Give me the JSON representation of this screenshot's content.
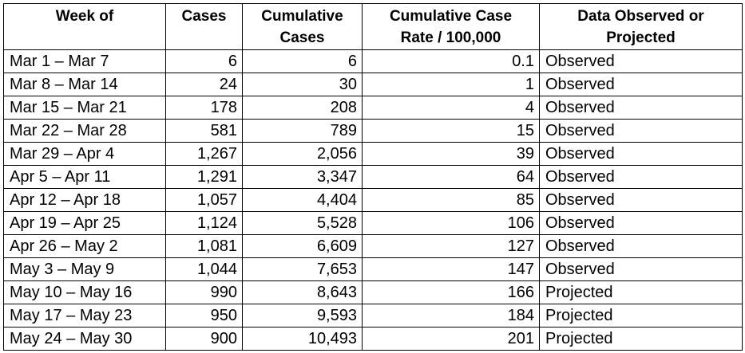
{
  "table": {
    "headers": {
      "week": [
        "Week of"
      ],
      "cases": [
        "Cases"
      ],
      "cumulative": [
        "Cumulative",
        "Cases"
      ],
      "rate": [
        "Cumulative Case",
        "Rate / 100,000"
      ],
      "status": [
        "Data Observed or",
        "Projected"
      ]
    },
    "rows": [
      {
        "week": "Mar 1 – Mar 7",
        "cases": "6",
        "cumulative": "6",
        "rate": "0.1",
        "status": "Observed"
      },
      {
        "week": "Mar 8 – Mar 14",
        "cases": "24",
        "cumulative": "30",
        "rate": "1",
        "status": "Observed"
      },
      {
        "week": "Mar 15 – Mar 21",
        "cases": "178",
        "cumulative": "208",
        "rate": "4",
        "status": "Observed"
      },
      {
        "week": "Mar 22 – Mar 28",
        "cases": "581",
        "cumulative": "789",
        "rate": "15",
        "status": "Observed"
      },
      {
        "week": "Mar 29 – Apr 4",
        "cases": "1,267",
        "cumulative": "2,056",
        "rate": "39",
        "status": "Observed"
      },
      {
        "week": "Apr 5 – Apr 11",
        "cases": "1,291",
        "cumulative": "3,347",
        "rate": "64",
        "status": "Observed"
      },
      {
        "week": "Apr 12 – Apr 18",
        "cases": "1,057",
        "cumulative": "4,404",
        "rate": "85",
        "status": "Observed"
      },
      {
        "week": "Apr 19 – Apr 25",
        "cases": "1,124",
        "cumulative": "5,528",
        "rate": "106",
        "status": "Observed"
      },
      {
        "week": "Apr 26 – May 2",
        "cases": "1,081",
        "cumulative": "6,609",
        "rate": "127",
        "status": "Observed"
      },
      {
        "week": "May 3 – May 9",
        "cases": "1,044",
        "cumulative": "7,653",
        "rate": "147",
        "status": "Observed"
      },
      {
        "week": "May 10 – May 16",
        "cases": "990",
        "cumulative": "8,643",
        "rate": "166",
        "status": "Projected"
      },
      {
        "week": "May 17 – May 23",
        "cases": "950",
        "cumulative": "9,593",
        "rate": "184",
        "status": "Projected"
      },
      {
        "week": "May 24 – May 30",
        "cases": "900",
        "cumulative": "10,493",
        "rate": "201",
        "status": "Projected"
      }
    ]
  }
}
